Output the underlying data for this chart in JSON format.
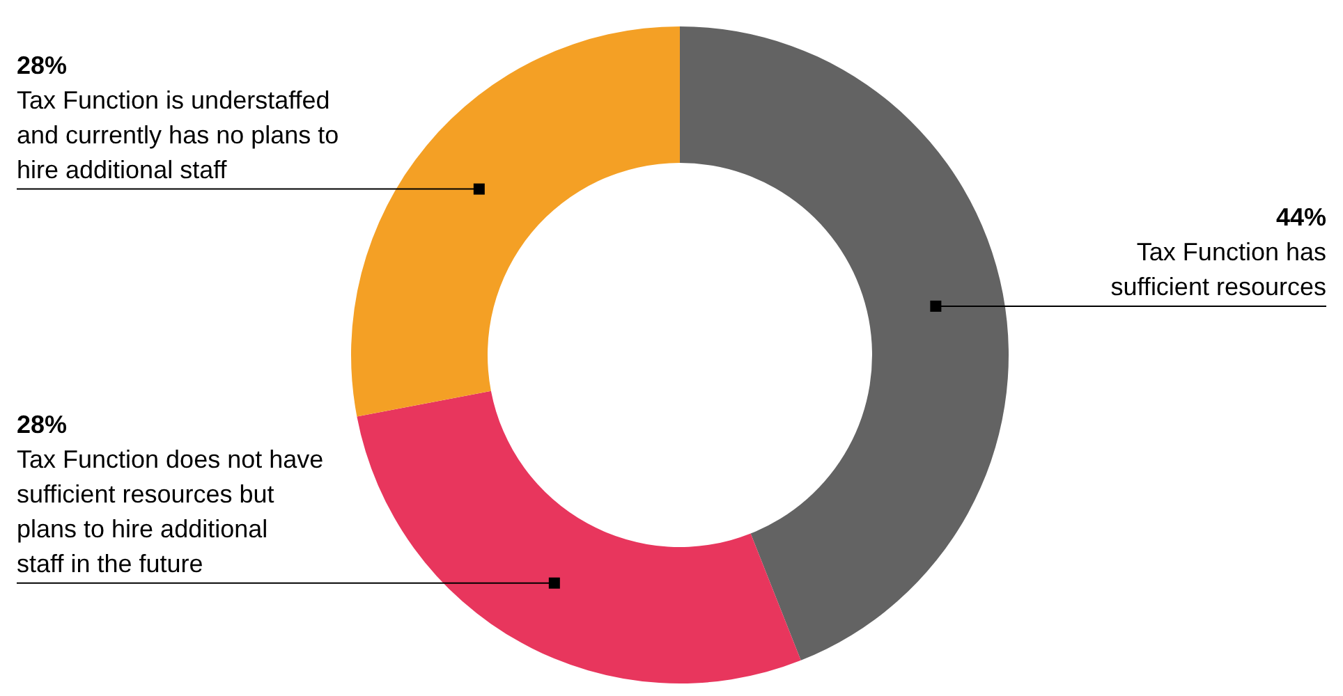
{
  "chart_data": {
    "type": "donut",
    "categories": [
      "Tax Function has sufficient resources",
      "Tax Function does not have sufficient resources but plans to hire additional staff in the future",
      "Tax Function is understaffed and currently has no plans to hire additional staff"
    ],
    "values": [
      44,
      28,
      28
    ],
    "colors": [
      "#636363",
      "#e8365d",
      "#f4a025"
    ],
    "value_labels": [
      "44%",
      "28%",
      "28%"
    ]
  }
}
